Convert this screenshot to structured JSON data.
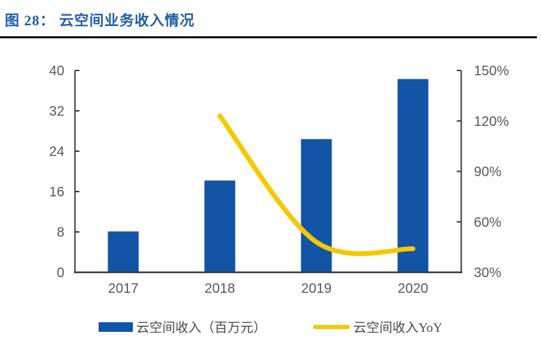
{
  "header": {
    "title": "图 28： 云空间业务收入情况"
  },
  "colors": {
    "title": "#1E5CA9",
    "rule": "#05070D",
    "axis": "#3A3A3A",
    "tick_label": "#595959",
    "legend_text": "#4A4A4A",
    "bar": "#1254A6",
    "line": "#F5C800"
  },
  "legend": {
    "items": [
      {
        "label": "云空间收入（百万元）",
        "marker": "bar-swatch",
        "color": "#1254A6"
      },
      {
        "label": "云空间收入YoY",
        "marker": "line-swatch",
        "color": "#F5C800"
      }
    ]
  },
  "chart_data": {
    "type": "combo",
    "title": "云空间业务收入情况",
    "categories": [
      "2017",
      "2018",
      "2019",
      "2020"
    ],
    "series": [
      {
        "name": "云空间收入（百万元）",
        "type": "bar",
        "axis": "left",
        "values": [
          8.1,
          18.2,
          26.4,
          38.3
        ],
        "color": "#1254A6"
      },
      {
        "name": "云空间收入YoY",
        "type": "line",
        "axis": "right",
        "unit": "%",
        "values": [
          null,
          123,
          48,
          44
        ],
        "color": "#F5C800"
      }
    ],
    "left_axis": {
      "min": 0,
      "max": 40,
      "ticks": [
        0,
        8,
        16,
        24,
        32,
        40
      ]
    },
    "right_axis": {
      "min": 30,
      "max": 150,
      "tick_step": 30,
      "ticks": [
        "30%",
        "60%",
        "90%",
        "120%",
        "150%"
      ]
    },
    "grid": false,
    "legend_position": "bottom"
  }
}
